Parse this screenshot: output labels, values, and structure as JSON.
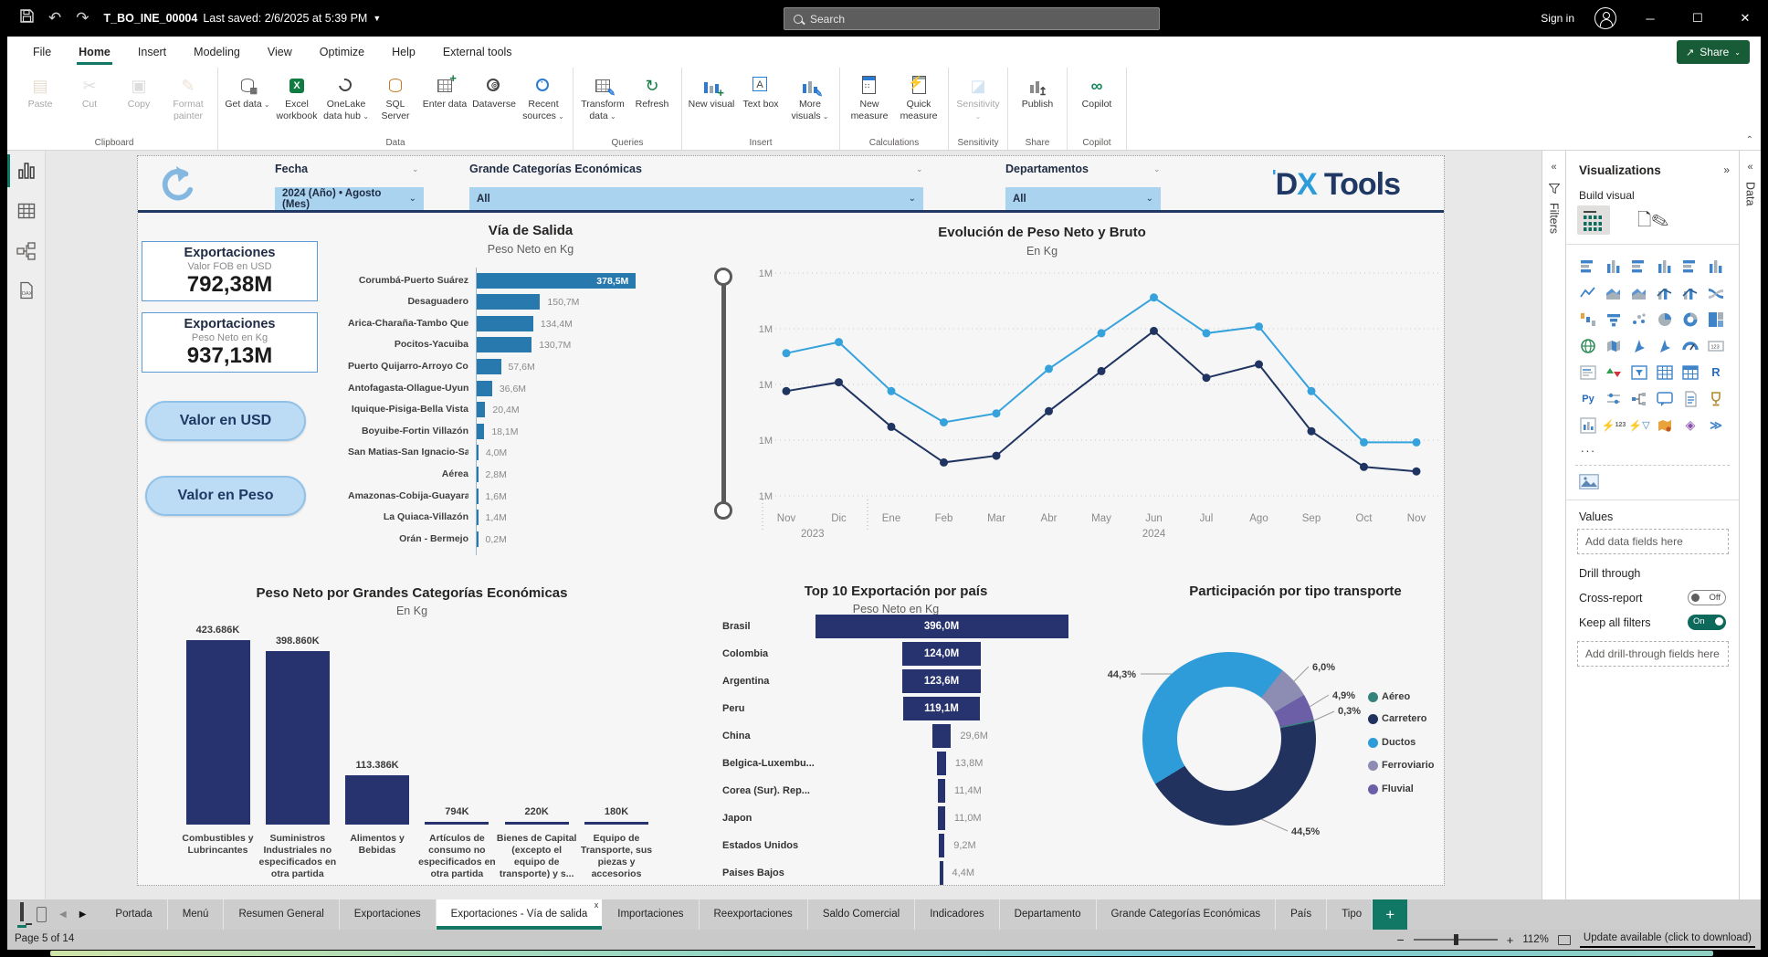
{
  "titlebar": {
    "title": "T_BO_INE_00004",
    "saved": "Last saved: 2/6/2025 at 5:39 PM",
    "search_placeholder": "Search",
    "sign_in": "Sign in"
  },
  "menubar": {
    "items": [
      "File",
      "Home",
      "Insert",
      "Modeling",
      "View",
      "Optimize",
      "Help",
      "External tools"
    ],
    "active_index": 1,
    "share_label": "Share"
  },
  "ribbon": {
    "groups": [
      {
        "label": "Clipboard",
        "buttons": [
          {
            "label": "Paste",
            "icon": "paste",
            "disabled": true
          },
          {
            "label": "Cut",
            "icon": "cut",
            "disabled": true
          },
          {
            "label": "Copy",
            "icon": "copy",
            "disabled": true
          },
          {
            "label": "Format painter",
            "icon": "format-painter",
            "disabled": true
          }
        ]
      },
      {
        "label": "Data",
        "buttons": [
          {
            "label": "Get data",
            "icon": "get-data",
            "chev": true
          },
          {
            "label": "Excel workbook",
            "icon": "excel"
          },
          {
            "label": "OneLake data hub",
            "icon": "onelake",
            "chev": true
          },
          {
            "label": "SQL Server",
            "icon": "sql"
          },
          {
            "label": "Enter data",
            "icon": "enter-data"
          },
          {
            "label": "Dataverse",
            "icon": "dataverse"
          },
          {
            "label": "Recent sources",
            "icon": "recent",
            "chev": true
          }
        ]
      },
      {
        "label": "Queries",
        "buttons": [
          {
            "label": "Transform data",
            "icon": "transform",
            "chev": true
          },
          {
            "label": "Refresh",
            "icon": "refresh"
          }
        ]
      },
      {
        "label": "Insert",
        "buttons": [
          {
            "label": "New visual",
            "icon": "new-visual"
          },
          {
            "label": "Text box",
            "icon": "text-box"
          },
          {
            "label": "More visuals",
            "icon": "more-visuals",
            "chev": true
          }
        ]
      },
      {
        "label": "Calculations",
        "buttons": [
          {
            "label": "New measure",
            "icon": "new-measure"
          },
          {
            "label": "Quick measure",
            "icon": "quick-measure"
          }
        ]
      },
      {
        "label": "Sensitivity",
        "buttons": [
          {
            "label": "Sensitivity",
            "icon": "sensitivity",
            "disabled": true,
            "chev": true
          }
        ]
      },
      {
        "label": "Share",
        "buttons": [
          {
            "label": "Publish",
            "icon": "publish"
          }
        ]
      },
      {
        "label": "Copilot",
        "buttons": [
          {
            "label": "Copilot",
            "icon": "copilot"
          }
        ]
      }
    ]
  },
  "view_rail": [
    {
      "name": "report-view",
      "selected": true
    },
    {
      "name": "table-view",
      "selected": false
    },
    {
      "name": "model-view",
      "selected": false
    },
    {
      "name": "dax-query-view",
      "selected": false
    }
  ],
  "filters_pane": {
    "title": "Filters"
  },
  "data_pane": {
    "title": "Data"
  },
  "report": {
    "slicers": [
      {
        "label": "Fecha",
        "value": "2024 (Año) • Agosto (Mes)"
      },
      {
        "label": "Grande Categorías Económicas",
        "value": "All"
      },
      {
        "label": "Departamentos",
        "value": "All"
      }
    ],
    "logo": {
      "part1": "D",
      "part_x": "X",
      "part2": "Tools"
    },
    "kpis": [
      {
        "title": "Exportaciones",
        "subtitle": "Valor FOB en USD",
        "value": "792,38M"
      },
      {
        "title": "Exportaciones",
        "subtitle": "Peso Neto en Kg",
        "value": "937,13M"
      }
    ],
    "buttons": [
      {
        "label": "Valor en USD"
      },
      {
        "label": "Valor en Peso"
      }
    ]
  },
  "chart_data": [
    {
      "id": "via_salida",
      "type": "bar",
      "title": "Vía de Salida",
      "subtitle": "Peso Neto  en Kg",
      "categories": [
        "Corumbá-Puerto Suárez",
        "Desaguadero",
        "Arica-Charaña-Tambo Que...",
        "Pocitos-Yacuiba",
        "Puerto Quijarro-Arroyo Co...",
        "Antofagasta-Ollague-Uyuni",
        "Iquique-Pisiga-Bella Vista",
        "Boyuibe-Fortin Villazón",
        "San Matias-San Ignacio-Sa...",
        "Aérea",
        "Amazonas-Cobija-Guayara...",
        "La Quiaca-Villazón",
        "Orán - Bermejo"
      ],
      "values": [
        378.5,
        150.7,
        134.4,
        130.7,
        57.6,
        36.6,
        20.4,
        18.1,
        4.0,
        2.8,
        1.6,
        1.4,
        0.2
      ],
      "labels": [
        "378,5M",
        "150,7M",
        "134,4M",
        "130,7M",
        "57,6M",
        "36,6M",
        "20,4M",
        "18,1M",
        "4,0M",
        "2,8M",
        "1,6M",
        "1,4M",
        "0,2M"
      ],
      "bar_color": "#2779AE",
      "xlim": [
        0,
        380
      ]
    },
    {
      "id": "evolucion",
      "type": "line",
      "title": "Evolución de Peso Neto y Bruto",
      "subtitle": "En Kg",
      "x": [
        "Nov",
        "Dic",
        "Ene",
        "Feb",
        "Mar",
        "Abr",
        "May",
        "Jun",
        "Jul",
        "Ago",
        "Sep",
        "Oct",
        "Nov"
      ],
      "year_marks": [
        {
          "label": "2023",
          "index": 0.5
        },
        {
          "label": "2024",
          "index": 7
        }
      ],
      "y_ticks": [
        "1M",
        "1M",
        "1M",
        "1M",
        "1M"
      ],
      "series": [
        {
          "name": "Peso Bruto",
          "color": "#36A2DC",
          "values_norm": [
            0.64,
            0.69,
            0.47,
            0.33,
            0.37,
            0.57,
            0.73,
            0.89,
            0.73,
            0.76,
            0.47,
            0.24,
            0.24
          ]
        },
        {
          "name": "Peso Neto",
          "color": "#1F3460",
          "values_norm": [
            0.47,
            0.51,
            0.31,
            0.15,
            0.18,
            0.38,
            0.56,
            0.74,
            0.53,
            0.59,
            0.29,
            0.13,
            0.11
          ]
        }
      ]
    },
    {
      "id": "categorias",
      "type": "bar",
      "title": "Peso Neto por Grandes Categorías Económicas",
      "subtitle": "En Kg",
      "categories": [
        "Combustibles y Lubrincantes",
        "Suministros Industriales no especificados en otra partida",
        "Alimentos y Bebidas",
        "Artículos de consumo no especificados en otra partida",
        "Bienes de Capital (excepto el equipo de transporte) y s...",
        "Equipo de Transporte, sus piezas y accesorios"
      ],
      "values": [
        423686,
        398860,
        113386,
        794,
        220,
        180
      ],
      "labels": [
        "423.686K",
        "398.860K",
        "113.386K",
        "794K",
        "220K",
        "180K"
      ],
      "bar_color": "#27336E",
      "ylim": [
        0,
        450000
      ]
    },
    {
      "id": "top10",
      "type": "bar",
      "title": "Top 10 Exportación por país",
      "subtitle": "Peso Neto  en Kg",
      "categories": [
        "Brasil",
        "Colombia",
        "Argentina",
        "Peru",
        "China",
        "Belgica-Luxembu...",
        "Corea (Sur). Rep...",
        "Japon",
        "Estados Unidos",
        "Paises Bajos"
      ],
      "values": [
        396.0,
        124.0,
        123.6,
        119.1,
        29.6,
        13.8,
        11.4,
        11.0,
        9.2,
        4.4
      ],
      "labels": [
        "396,0M",
        "124,0M",
        "123,6M",
        "119,1M",
        "29,6M",
        "13,8M",
        "11,4M",
        "11,0M",
        "9,2M",
        "4,4M"
      ],
      "inside_label_count": 4,
      "bar_color": "#27336E"
    },
    {
      "id": "transporte",
      "type": "pie",
      "title": "Participación por tipo transporte",
      "legend": [
        {
          "name": "Aéreo",
          "color": "#35837D"
        },
        {
          "name": "Carretero",
          "color": "#21325F"
        },
        {
          "name": "Ductos",
          "color": "#2E9CD9"
        },
        {
          "name": "Ferroviario",
          "color": "#8D8DB3"
        },
        {
          "name": "Fluvial",
          "color": "#6C5FA7"
        }
      ],
      "slices_clockwise": [
        {
          "name": "Ferroviario",
          "pct": 6.0,
          "label": "6,0%"
        },
        {
          "name": "Fluvial",
          "pct": 4.9,
          "label": "4,9%"
        },
        {
          "name": "Aéreo",
          "pct": 0.3,
          "label": "0,3%"
        },
        {
          "name": "Carretero",
          "pct": 44.5,
          "label": "44,5%"
        },
        {
          "name": "Ductos",
          "pct": 44.3,
          "label": "44,3%"
        }
      ],
      "start_angle_deg": 38
    }
  ],
  "viz_panel": {
    "title": "Visualizations",
    "build_label": "Build visual",
    "values_label": "Values",
    "values_placeholder": "Add data fields here",
    "drill_label": "Drill through",
    "cross_report": "Cross-report",
    "cross_report_state": "Off",
    "keep_filters": "Keep all filters",
    "keep_filters_state": "On",
    "drill_placeholder": "Add drill-through fields here",
    "more": "..."
  },
  "gallery": [
    "stacked-bar",
    "stacked-column",
    "clustered-bar",
    "clustered-column",
    "100-stacked-bar",
    "100-stacked-column",
    "line",
    "area",
    "stacked-area",
    "line-and-stacked-column",
    "line-and-clustered-column",
    "ribbon",
    "waterfall",
    "funnel",
    "scatter",
    "pie",
    "donut",
    "treemap",
    "map",
    "filled-map",
    "shape-map",
    "azure-map",
    "gauge",
    "card",
    "multi-row-card",
    "kpi",
    "slicer",
    "table",
    "matrix",
    "r-script",
    "python",
    "field-parameters",
    "decomposition-tree",
    "qa",
    "paginated-report",
    "metrics",
    "report",
    "what-if",
    "smart-filter",
    "arcgis",
    "power-apps",
    "power-automate"
  ],
  "page_tabs": {
    "pages": [
      "Portada",
      "Menú",
      "Resumen General",
      "Exportaciones",
      "Exportaciones - Vía de salida",
      "Importaciones",
      "Reexportaciones",
      "Saldo Comercial",
      "Indicadores",
      "Departamento",
      "Grande Categorías Económicas",
      "País",
      "Tipo"
    ],
    "active": "Exportaciones - Vía de salida",
    "add_label": "+"
  },
  "statusbar": {
    "page_info": "Page 5 of 14",
    "zoom": "112%",
    "update": "Update available (click to download)"
  }
}
